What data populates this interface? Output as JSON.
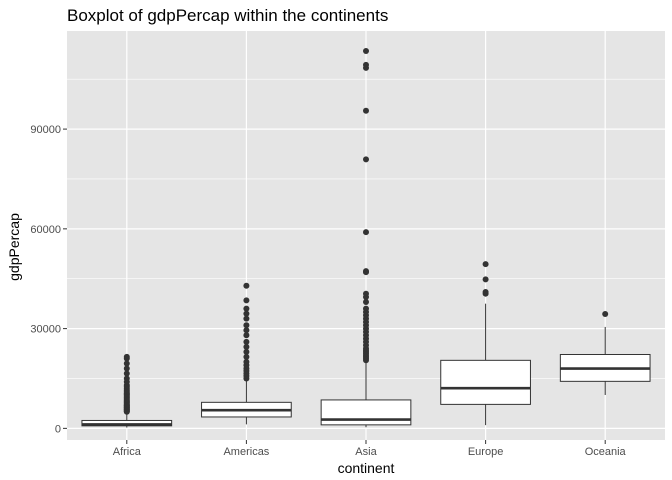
{
  "chart_data": {
    "type": "boxplot",
    "title": "Boxplot of gdpPercap within the continents",
    "xlabel": "continent",
    "ylabel": "gdpPercap",
    "categories": [
      "Africa",
      "Americas",
      "Asia",
      "Europe",
      "Oceania"
    ],
    "yticks": [
      0,
      30000,
      60000,
      90000
    ],
    "ytick_labels": [
      "0",
      "30000",
      "60000",
      "90000"
    ],
    "ylim": [
      -3500,
      119500
    ],
    "grid": true,
    "panel_color": "#e5e5e5",
    "boxes": [
      {
        "name": "Africa",
        "whisker_low": 241,
        "q1": 761,
        "median": 1192,
        "q3": 2377,
        "whisker_high": 4800,
        "outliers": [
          5000,
          5200,
          5400,
          5600,
          5800,
          6000,
          6200,
          6400,
          6600,
          6800,
          7000,
          7200,
          7500,
          7800,
          8000,
          8300,
          8600,
          9000,
          9300,
          9600,
          10000,
          10300,
          10600,
          11000,
          11500,
          12000,
          12500,
          13000,
          14000,
          15000,
          16500,
          18000,
          19500,
          21000,
          21500
        ]
      },
      {
        "name": "Americas",
        "whisker_low": 1202,
        "q1": 3428,
        "median": 5466,
        "q3": 7830,
        "whisker_high": 14300,
        "outliers": [
          15000,
          15800,
          16500,
          17300,
          18000,
          19000,
          20000,
          21500,
          23000,
          24500,
          26000,
          28000,
          29500,
          31000,
          33000,
          34500,
          36000,
          38500,
          42900
        ]
      },
      {
        "name": "Asia",
        "whisker_low": 331,
        "q1": 1057,
        "median": 2647,
        "q3": 8549,
        "whisker_high": 19800,
        "outliers": [
          20500,
          21000,
          21500,
          22000,
          22500,
          23000,
          23500,
          24000,
          25000,
          26000,
          27000,
          28000,
          29000,
          30000,
          31000,
          32000,
          33000,
          34000,
          35000,
          36000,
          38000,
          39500,
          40500,
          47000,
          47300,
          59000,
          80900,
          95500,
          108400,
          109300,
          113500
        ]
      },
      {
        "name": "Europe",
        "whisker_low": 974,
        "q1": 7213,
        "median": 12082,
        "q3": 20461,
        "whisker_high": 37500,
        "outliers": [
          40500,
          41000,
          44800,
          49400
        ]
      },
      {
        "name": "Oceania",
        "whisker_low": 10040,
        "q1": 14142,
        "median": 17983,
        "q3": 22214,
        "whisker_high": 30500,
        "outliers": [
          34400
        ]
      }
    ]
  },
  "colors": {
    "panel": "#e5e5e5",
    "grid": "#ffffff",
    "box_fill": "#ffffff",
    "box_stroke": "#333333",
    "outlier": "#333333",
    "tick": "#333333"
  }
}
